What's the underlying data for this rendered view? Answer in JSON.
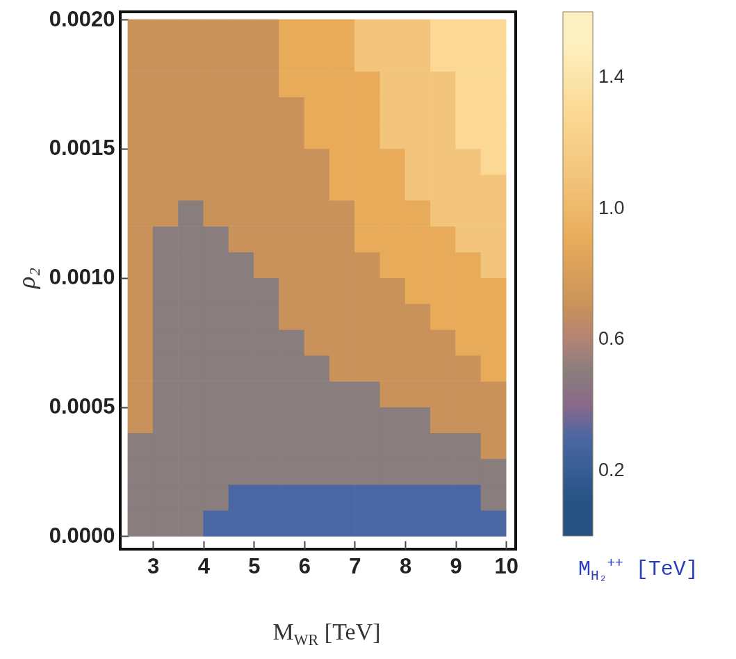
{
  "chart_data": {
    "type": "scatter",
    "marker": "square",
    "xlabel": "M$_{W}$$_{R}$ [TeV]",
    "ylabel": "ρ₂",
    "clabel": "M$_{H₂}$$^{++}$ [TeV]",
    "xlim": [
      2.35,
      10.19
    ],
    "xticks": [
      3,
      4,
      5,
      6,
      7,
      8,
      9,
      10
    ],
    "ylim": [
      -5e-05,
      0.00203
    ],
    "yticks": [
      {
        "value": 0,
        "label": "0.0000"
      },
      {
        "value": 0.0005,
        "label": "0.0005"
      },
      {
        "value": 0.001,
        "label": "0.0010"
      },
      {
        "value": 0.0015,
        "label": "0.0015"
      },
      {
        "value": 0.002,
        "label": "0.0020"
      }
    ],
    "clim": [
      0,
      1.6
    ],
    "cticks": [
      0.2,
      0.6,
      {
        "value": 1,
        "label": "1.0"
      },
      1.4
    ],
    "x": [
      2.75,
      2.75,
      2.75,
      2.75,
      2.75,
      2.75,
      2.75,
      2.75,
      2.75,
      2.75,
      2.75,
      2.75,
      2.75,
      2.75,
      2.75,
      2.75,
      2.75,
      2.75,
      2.75,
      2.75,
      3.25,
      3.25,
      3.25,
      3.25,
      3.25,
      3.25,
      3.25,
      3.25,
      3.25,
      3.25,
      3.25,
      3.25,
      3.25,
      3.25,
      3.25,
      3.25,
      3.25,
      3.25,
      3.25,
      3.25,
      3.75,
      3.75,
      3.75,
      3.75,
      3.75,
      3.75,
      3.75,
      3.75,
      3.75,
      3.75,
      3.75,
      3.75,
      3.75,
      3.75,
      3.75,
      3.75,
      3.75,
      3.75,
      3.75,
      3.75,
      4.25,
      4.25,
      4.25,
      4.25,
      4.25,
      4.25,
      4.25,
      4.25,
      4.25,
      4.25,
      4.25,
      4.25,
      4.25,
      4.25,
      4.25,
      4.25,
      4.25,
      4.25,
      4.25,
      4.25,
      4.75,
      4.75,
      4.75,
      4.75,
      4.75,
      4.75,
      4.75,
      4.75,
      4.75,
      4.75,
      4.75,
      4.75,
      4.75,
      4.75,
      4.75,
      4.75,
      4.75,
      4.75,
      4.75,
      4.75,
      5.25,
      5.25,
      5.25,
      5.25,
      5.25,
      5.25,
      5.25,
      5.25,
      5.25,
      5.25,
      5.25,
      5.25,
      5.25,
      5.25,
      5.25,
      5.25,
      5.25,
      5.25,
      5.25,
      5.25,
      5.75,
      5.75,
      5.75,
      5.75,
      5.75,
      5.75,
      5.75,
      5.75,
      5.75,
      5.75,
      5.75,
      5.75,
      5.75,
      5.75,
      5.75,
      5.75,
      5.75,
      5.75,
      5.75,
      5.75,
      6.25,
      6.25,
      6.25,
      6.25,
      6.25,
      6.25,
      6.25,
      6.25,
      6.25,
      6.25,
      6.25,
      6.25,
      6.25,
      6.25,
      6.25,
      6.25,
      6.25,
      6.25,
      6.25,
      6.25,
      6.75,
      6.75,
      6.75,
      6.75,
      6.75,
      6.75,
      6.75,
      6.75,
      6.75,
      6.75,
      6.75,
      6.75,
      6.75,
      6.75,
      6.75,
      6.75,
      6.75,
      6.75,
      6.75,
      6.75,
      7.25,
      7.25,
      7.25,
      7.25,
      7.25,
      7.25,
      7.25,
      7.25,
      7.25,
      7.25,
      7.25,
      7.25,
      7.25,
      7.25,
      7.25,
      7.25,
      7.25,
      7.25,
      7.25,
      7.25,
      7.75,
      7.75,
      7.75,
      7.75,
      7.75,
      7.75,
      7.75,
      7.75,
      7.75,
      7.75,
      7.75,
      7.75,
      7.75,
      7.75,
      7.75,
      7.75,
      7.75,
      7.75,
      7.75,
      7.75,
      8.25,
      8.25,
      8.25,
      8.25,
      8.25,
      8.25,
      8.25,
      8.25,
      8.25,
      8.25,
      8.25,
      8.25,
      8.25,
      8.25,
      8.25,
      8.25,
      8.25,
      8.25,
      8.25,
      8.25,
      8.75,
      8.75,
      8.75,
      8.75,
      8.75,
      8.75,
      8.75,
      8.75,
      8.75,
      8.75,
      8.75,
      8.75,
      8.75,
      8.75,
      8.75,
      8.75,
      8.75,
      8.75,
      8.75,
      8.75,
      9.25,
      9.25,
      9.25,
      9.25,
      9.25,
      9.25,
      9.25,
      9.25,
      9.25,
      9.25,
      9.25,
      9.25,
      9.25,
      9.25,
      9.25,
      9.25,
      9.25,
      9.25,
      9.25,
      9.25,
      9.75,
      9.75,
      9.75,
      9.75,
      9.75,
      9.75,
      9.75,
      9.75,
      9.75,
      9.75,
      9.75,
      9.75,
      9.75,
      9.75,
      9.75,
      9.75,
      9.75,
      9.75,
      9.75,
      9.75
    ],
    "values": [
      5e-05,
      0.00015,
      0.00025,
      0.00035,
      0.00045,
      0.00055,
      0.00065,
      0.00075,
      0.00085,
      0.00095,
      0.00105,
      0.00115,
      0.00125,
      0.00135,
      0.00145,
      0.00155,
      0.00165,
      0.00175,
      0.00185,
      0.00195,
      5e-05,
      0.00015,
      0.00025,
      0.00035,
      0.00045,
      0.00055,
      0.00065,
      0.00075,
      0.00085,
      0.00095,
      0.00105,
      0.00115,
      0.00125,
      0.00135,
      0.00145,
      0.00155,
      0.00165,
      0.00175,
      0.00185,
      0.00195,
      5e-05,
      0.00015,
      0.00025,
      0.00035,
      0.00045,
      0.00055,
      0.00065,
      0.00075,
      0.00085,
      0.00095,
      0.00105,
      0.00115,
      0.00125,
      0.00135,
      0.00145,
      0.00155,
      0.00165,
      0.00175,
      0.00185,
      0.00195,
      5e-05,
      0.00015,
      0.00025,
      0.00035,
      0.00045,
      0.00055,
      0.00065,
      0.00075,
      0.00085,
      0.00095,
      0.00105,
      0.00115,
      0.00125,
      0.00135,
      0.00145,
      0.00155,
      0.00165,
      0.00175,
      0.00185,
      0.00195,
      5e-05,
      0.00015,
      0.00025,
      0.00035,
      0.00045,
      0.00055,
      0.00065,
      0.00075,
      0.00085,
      0.00095,
      0.00105,
      0.00115,
      0.00125,
      0.00135,
      0.00145,
      0.00155,
      0.00165,
      0.00175,
      0.00185,
      0.00195,
      5e-05,
      0.00015,
      0.00025,
      0.00035,
      0.00045,
      0.00055,
      0.00065,
      0.00075,
      0.00085,
      0.00095,
      0.00105,
      0.00115,
      0.00125,
      0.00135,
      0.00145,
      0.00155,
      0.00165,
      0.00175,
      0.00185,
      0.00195,
      5e-05,
      0.00015,
      0.00025,
      0.00035,
      0.00045,
      0.00055,
      0.00065,
      0.00075,
      0.00085,
      0.00095,
      0.00105,
      0.00115,
      0.00125,
      0.00135,
      0.00145,
      0.00155,
      0.00165,
      0.00175,
      0.00185,
      0.00195,
      5e-05,
      0.00015,
      0.00025,
      0.00035,
      0.00045,
      0.00055,
      0.00065,
      0.00075,
      0.00085,
      0.00095,
      0.00105,
      0.00115,
      0.00125,
      0.00135,
      0.00145,
      0.00155,
      0.00165,
      0.00175,
      0.00185,
      0.00195,
      5e-05,
      0.00015,
      0.00025,
      0.00035,
      0.00045,
      0.00055,
      0.00065,
      0.00075,
      0.00085,
      0.00095,
      0.00105,
      0.00115,
      0.00125,
      0.00135,
      0.00145,
      0.00155,
      0.00165,
      0.00175,
      0.00185,
      0.00195,
      5e-05,
      0.00015,
      0.00025,
      0.00035,
      0.00045,
      0.00055,
      0.00065,
      0.00075,
      0.00085,
      0.00095,
      0.00105,
      0.00115,
      0.00125,
      0.00135,
      0.00145,
      0.00155,
      0.00165,
      0.00175,
      0.00185,
      0.00195,
      5e-05,
      0.00015,
      0.00025,
      0.00035,
      0.00045,
      0.00055,
      0.00065,
      0.00075,
      0.00085,
      0.00095,
      0.00105,
      0.00115,
      0.00125,
      0.00135,
      0.00145,
      0.00155,
      0.00165,
      0.00175,
      0.00185,
      0.00195,
      5e-05,
      0.00015,
      0.00025,
      0.00035,
      0.00045,
      0.00055,
      0.00065,
      0.00075,
      0.00085,
      0.00095,
      0.00105,
      0.00115,
      0.00125,
      0.00135,
      0.00145,
      0.00155,
      0.00165,
      0.00175,
      0.00185,
      0.00195,
      5e-05,
      0.00015,
      0.00025,
      0.00035,
      0.00045,
      0.00055,
      0.00065,
      0.00075,
      0.00085,
      0.00095,
      0.00105,
      0.00115,
      0.00125,
      0.00135,
      0.00145,
      0.00155,
      0.00165,
      0.00175,
      0.00185,
      0.00195,
      5e-05,
      0.00015,
      0.00025,
      0.00035,
      0.00045,
      0.00055,
      0.00065,
      0.00075,
      0.00085,
      0.00095,
      0.00105,
      0.00115,
      0.00125,
      0.00135,
      0.00145,
      0.00155,
      0.00165,
      0.00175,
      0.00185,
      0.00195,
      5e-05,
      0.00015,
      0.00025,
      0.00035,
      0.00045,
      0.00055,
      0.00065,
      0.00075,
      0.00085,
      0.00095,
      0.00105,
      0.00115,
      0.00125,
      0.00135,
      0.00145,
      0.00155,
      0.00165,
      0.00175,
      0.00185,
      0.00195
    ],
    "cvalues": [
      0.5,
      0.5,
      0.5,
      0.5,
      0.7,
      0.7,
      0.7,
      0.7,
      0.7,
      0.7,
      0.7,
      0.7,
      0.7,
      0.7,
      0.7,
      0.7,
      0.7,
      0.7,
      0.7,
      0.7,
      0.5,
      0.5,
      0.5,
      0.5,
      0.5,
      0.5,
      0.5,
      0.5,
      0.5,
      0.5,
      0.5,
      0.5,
      0.7,
      0.7,
      0.7,
      0.7,
      0.7,
      0.7,
      0.7,
      0.7,
      0.5,
      0.5,
      0.5,
      0.5,
      0.5,
      0.5,
      0.5,
      0.5,
      0.5,
      0.5,
      0.5,
      0.5,
      0.5,
      0.7,
      0.7,
      0.7,
      0.7,
      0.7,
      0.7,
      0.7,
      0.3,
      0.5,
      0.5,
      0.5,
      0.5,
      0.5,
      0.5,
      0.5,
      0.5,
      0.5,
      0.5,
      0.5,
      0.7,
      0.7,
      0.7,
      0.7,
      0.7,
      0.7,
      0.7,
      0.7,
      0.3,
      0.3,
      0.5,
      0.5,
      0.5,
      0.5,
      0.5,
      0.5,
      0.5,
      0.5,
      0.5,
      0.7,
      0.7,
      0.7,
      0.7,
      0.7,
      0.7,
      0.7,
      0.7,
      0.7,
      0.3,
      0.3,
      0.5,
      0.5,
      0.5,
      0.5,
      0.5,
      0.5,
      0.5,
      0.5,
      0.7,
      0.7,
      0.7,
      0.7,
      0.7,
      0.7,
      0.7,
      0.7,
      0.7,
      0.7,
      0.3,
      0.3,
      0.5,
      0.5,
      0.5,
      0.5,
      0.5,
      0.5,
      0.7,
      0.7,
      0.7,
      0.7,
      0.7,
      0.7,
      0.7,
      0.7,
      0.7,
      0.9,
      0.9,
      0.9,
      0.3,
      0.3,
      0.5,
      0.5,
      0.5,
      0.5,
      0.5,
      0.7,
      0.7,
      0.7,
      0.7,
      0.7,
      0.7,
      0.7,
      0.7,
      0.9,
      0.9,
      0.9,
      0.9,
      0.9,
      0.3,
      0.3,
      0.5,
      0.5,
      0.5,
      0.5,
      0.7,
      0.7,
      0.7,
      0.7,
      0.7,
      0.7,
      0.7,
      0.9,
      0.9,
      0.9,
      0.9,
      0.9,
      0.9,
      0.9,
      0.3,
      0.3,
      0.5,
      0.5,
      0.5,
      0.5,
      0.7,
      0.7,
      0.7,
      0.7,
      0.7,
      0.9,
      0.9,
      0.9,
      0.9,
      0.9,
      0.9,
      0.9,
      1.1,
      1.1,
      0.3,
      0.3,
      0.5,
      0.5,
      0.5,
      0.7,
      0.7,
      0.7,
      0.7,
      0.7,
      0.9,
      0.9,
      0.9,
      0.9,
      0.9,
      1.1,
      1.1,
      1.1,
      1.1,
      1.1,
      0.3,
      0.3,
      0.5,
      0.5,
      0.5,
      0.7,
      0.7,
      0.7,
      0.7,
      0.9,
      0.9,
      0.9,
      0.9,
      1.1,
      1.1,
      1.1,
      1.1,
      1.1,
      1.1,
      1.1,
      0.3,
      0.3,
      0.5,
      0.5,
      0.7,
      0.7,
      0.7,
      0.7,
      0.9,
      0.9,
      0.9,
      0.9,
      1.1,
      1.1,
      1.1,
      1.1,
      1.1,
      1.1,
      1.3,
      1.3,
      0.3,
      0.3,
      0.5,
      0.5,
      0.7,
      0.7,
      0.7,
      0.9,
      0.9,
      0.9,
      0.9,
      1.1,
      1.1,
      1.1,
      1.1,
      1.3,
      1.3,
      1.3,
      1.3,
      1.3,
      0.3,
      0.5,
      0.5,
      0.7,
      0.7,
      0.7,
      0.9,
      0.9,
      0.9,
      0.9,
      1.1,
      1.1,
      1.1,
      1.1,
      1.3,
      1.3,
      1.3,
      1.3,
      1.3,
      1.3
    ]
  }
}
